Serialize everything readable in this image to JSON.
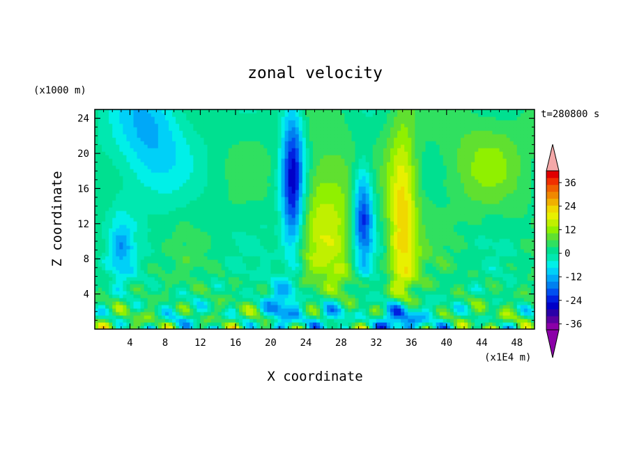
{
  "chart_data": {
    "type": "heatmap",
    "title": "zonal velocity",
    "xlabel": "X coordinate",
    "ylabel": "Z coordinate",
    "x_unit": "(x1E4 m)",
    "y_unit": "(x1000 m)",
    "time_label": "t=280800 s",
    "xlim": [
      0,
      50
    ],
    "ylim": [
      0,
      25
    ],
    "x_ticks": [
      4,
      8,
      12,
      16,
      20,
      24,
      28,
      32,
      36,
      40,
      44,
      48
    ],
    "y_ticks": [
      4,
      8,
      12,
      16,
      20,
      24
    ],
    "colorbar": {
      "levels": [
        -42,
        -39,
        -36,
        -33,
        -30,
        -27,
        -24,
        -21,
        -18,
        -15,
        -12,
        -9,
        -6,
        -3,
        0,
        3,
        6,
        9,
        12,
        15,
        18,
        21,
        24,
        27,
        30,
        33,
        36,
        39,
        42
      ],
      "tick_labels": [
        "-36",
        "-24",
        "-12",
        "0",
        "12",
        "24",
        "36"
      ],
      "tick_values": [
        -36,
        -24,
        -12,
        0,
        12,
        24,
        36
      ],
      "colors": [
        "#8b00a8",
        "#5a00a0",
        "#2a00a8",
        "#0000c8",
        "#0020e0",
        "#0050f0",
        "#0080f0",
        "#00a8f8",
        "#00d0f8",
        "#00f0e8",
        "#00e8b0",
        "#00e090",
        "#30e060",
        "#60e030",
        "#90f000",
        "#c0f000",
        "#e8f000",
        "#f0d800",
        "#f0b000",
        "#f08800",
        "#f06000",
        "#f03000",
        "#e00000"
      ],
      "under_color": "#8b00a8",
      "over_color": "#f4a8a8",
      "extend": "both"
    },
    "data_note": "2-D field of zonal velocity on X (0–50 ×1E4 m) by Z (0–25 ×1000 m)"
  }
}
